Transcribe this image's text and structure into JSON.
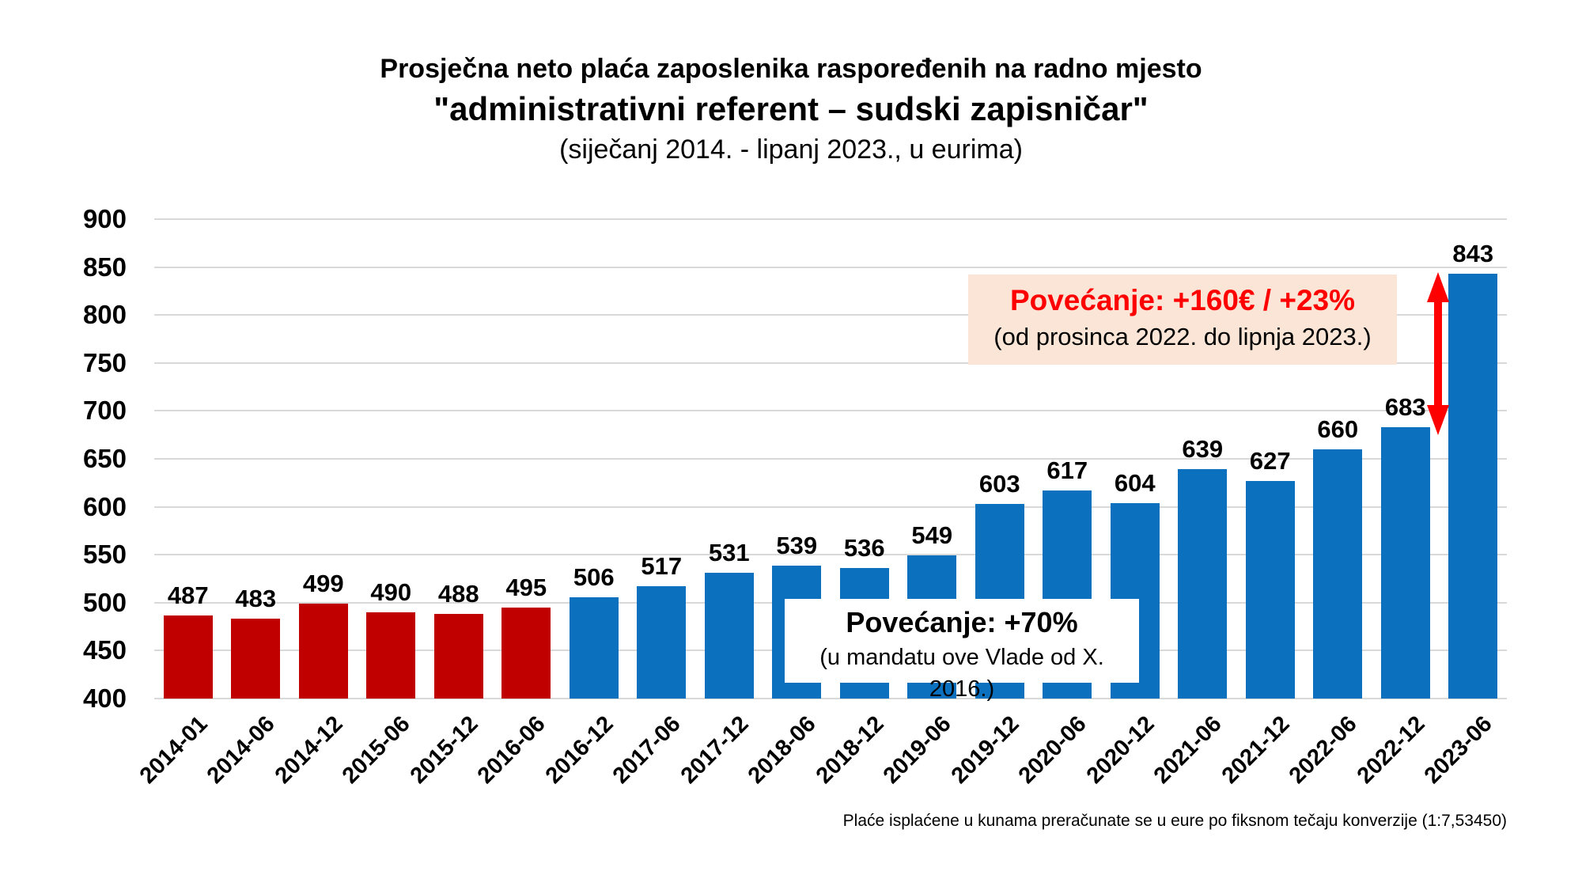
{
  "chart_data": {
    "type": "bar",
    "title": "Prosječna neto plaća zaposlenika raspoređenih na radno mjesto",
    "subtitle": "\"administrativni referent – sudski zapisničar\"",
    "period_note": "(siječanj 2014. - lipanj 2023., u eurima)",
    "categories": [
      "2014-01",
      "2014-06",
      "2014-12",
      "2015-06",
      "2015-12",
      "2016-06",
      "2016-12",
      "2017-06",
      "2017-12",
      "2018-06",
      "2018-12",
      "2019-06",
      "2019-12",
      "2020-06",
      "2020-12",
      "2021-06",
      "2021-12",
      "2022-06",
      "2022-12",
      "2023-06"
    ],
    "values": [
      487,
      483,
      499,
      490,
      488,
      495,
      506,
      517,
      531,
      539,
      536,
      549,
      603,
      617,
      604,
      639,
      627,
      660,
      683,
      843
    ],
    "ylim": [
      400,
      900
    ],
    "ytick_step": 50,
    "grid": true,
    "legend": "none",
    "bar_color_red": "#C00000",
    "bar_color_blue": "#0B70BE",
    "red_bar_count": 6
  },
  "annotations": {
    "increase_total": {
      "line1": "Povećanje: +70%",
      "line2": "(u mandatu ove Vlade od X. 2016.)"
    },
    "increase_recent": {
      "line1": "Povećanje: +160€ / +23%",
      "line2": "(od prosinca 2022. do lipnja 2023.)",
      "accent_color": "#FF0000",
      "bg_color": "#FBE5D6",
      "arrow_color": "#FF0000"
    }
  },
  "footnote": "Plaće isplaćene u kunama preračunate se u eure po fiksnom tečaju konverzije (1:7,53450)"
}
